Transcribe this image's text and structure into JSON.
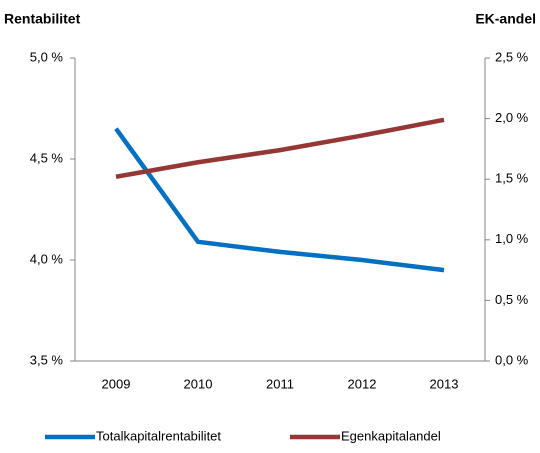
{
  "chart_data": {
    "type": "line",
    "y_title": "Rentabilitet",
    "y2_title": "EK-andel",
    "categories": [
      "2009",
      "2010",
      "2011",
      "2012",
      "2013"
    ],
    "series": [
      {
        "name": "Totalkapitalrentabilitet",
        "color": "#0070c0",
        "values": [
          4.65,
          4.09,
          4.04,
          4.0,
          3.95
        ]
      },
      {
        "name": "Egenkapitalandel",
        "color": "#953735",
        "axis": "y2",
        "values": [
          1.52,
          1.64,
          1.74,
          1.86,
          1.99
        ]
      }
    ],
    "ylim": [
      3.5,
      5.0
    ],
    "yticks": [
      {
        "value": 3.5,
        "label": "3,5 %"
      },
      {
        "value": 4.0,
        "label": "4,0 %"
      },
      {
        "value": 4.5,
        "label": "4,5 %"
      },
      {
        "value": 5.0,
        "label": "5,0 %"
      }
    ],
    "y2lim": [
      0,
      2.5
    ],
    "y2ticks": [
      {
        "value": 0,
        "label": "0,0 %"
      },
      {
        "value": 0.5,
        "label": "0,5 %"
      },
      {
        "value": 1.0,
        "label": "1,0 %"
      },
      {
        "value": 1.5,
        "label": "1,5 %"
      },
      {
        "value": 2.0,
        "label": "2,0 %"
      },
      {
        "value": 2.5,
        "label": "2,5 %"
      }
    ],
    "grid": false,
    "legend": "bottom"
  }
}
